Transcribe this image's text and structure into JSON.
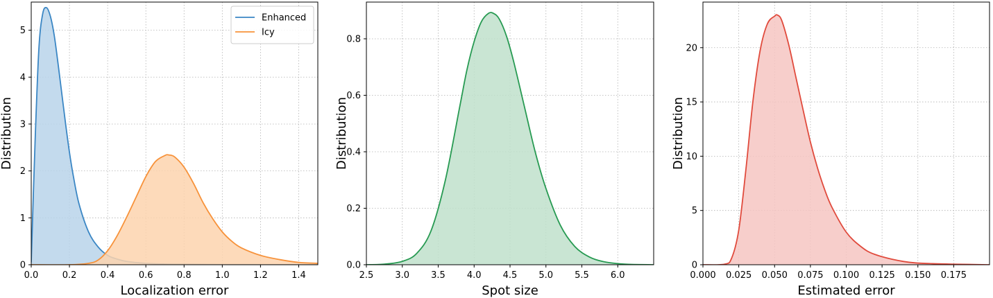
{
  "chart_data": [
    {
      "type": "area",
      "xlabel": "Localization error",
      "ylabel": "Distribution",
      "xlim": [
        0,
        1.5
      ],
      "ylim": [
        0,
        5.6
      ],
      "xticks": [
        "0.0",
        "0.2",
        "0.4",
        "0.6",
        "0.8",
        "1.0",
        "1.2",
        "1.4"
      ],
      "yticks": [
        "0",
        "1",
        "2",
        "3",
        "4",
        "5"
      ],
      "grid": true,
      "legend": "top-right",
      "series": [
        {
          "name": "Enhanced",
          "line_color": "#3a86c4",
          "fill_color": "#b9d4ea",
          "x": [
            0,
            0.02,
            0.04,
            0.06,
            0.08,
            0.1,
            0.12,
            0.14,
            0.16,
            0.18,
            0.2,
            0.22,
            0.25,
            0.3,
            0.35,
            0.4,
            0.45,
            0.5,
            0.6,
            0.7,
            0.8,
            1.0,
            1.2,
            1.5
          ],
          "y": [
            0.05,
            2.6,
            4.6,
            5.35,
            5.48,
            5.3,
            4.9,
            4.3,
            3.65,
            3.0,
            2.4,
            1.9,
            1.3,
            0.7,
            0.38,
            0.2,
            0.12,
            0.07,
            0.03,
            0.015,
            0.01,
            0.004,
            0.002,
            0.001
          ]
        },
        {
          "name": "Icy",
          "line_color": "#f7923a",
          "fill_color": "#fdd3ae",
          "x": [
            0,
            0.2,
            0.3,
            0.35,
            0.4,
            0.45,
            0.5,
            0.55,
            0.6,
            0.65,
            0.7,
            0.72,
            0.75,
            0.8,
            0.85,
            0.9,
            0.95,
            1.0,
            1.05,
            1.1,
            1.2,
            1.3,
            1.4,
            1.5
          ],
          "y": [
            0.0,
            0.0,
            0.03,
            0.1,
            0.3,
            0.62,
            1.02,
            1.45,
            1.88,
            2.2,
            2.33,
            2.34,
            2.3,
            2.08,
            1.73,
            1.32,
            0.98,
            0.7,
            0.5,
            0.36,
            0.2,
            0.11,
            0.05,
            0.03
          ]
        }
      ]
    },
    {
      "type": "area",
      "xlabel": "Spot size",
      "ylabel": "Distribution",
      "xlim": [
        2.5,
        6.5
      ],
      "ylim": [
        0,
        0.93
      ],
      "xticks": [
        "2.5",
        "3.0",
        "3.5",
        "4.0",
        "4.5",
        "5.0",
        "5.5",
        "6.0"
      ],
      "yticks": [
        "0.0",
        "0.2",
        "0.4",
        "0.6",
        "0.8"
      ],
      "grid": true,
      "series": [
        {
          "line_color": "#279a52",
          "fill_color": "#bfe1cb",
          "x": [
            2.5,
            2.75,
            3.0,
            3.2,
            3.4,
            3.6,
            3.8,
            3.9,
            4.0,
            4.1,
            4.2,
            4.27,
            4.35,
            4.45,
            4.55,
            4.7,
            4.85,
            5.0,
            5.2,
            5.4,
            5.6,
            5.8,
            6.1,
            6.5
          ],
          "y": [
            0.0,
            0.002,
            0.012,
            0.04,
            0.12,
            0.3,
            0.56,
            0.69,
            0.79,
            0.86,
            0.89,
            0.89,
            0.87,
            0.81,
            0.72,
            0.56,
            0.4,
            0.27,
            0.14,
            0.065,
            0.028,
            0.011,
            0.002,
            0.0
          ]
        }
      ]
    },
    {
      "type": "area",
      "xlabel": "Estimated error",
      "ylabel": "Distribution",
      "xlim": [
        0,
        0.2
      ],
      "ylim": [
        0,
        24.2
      ],
      "xticks": [
        "0.000",
        "0.025",
        "0.050",
        "0.075",
        "0.100",
        "0.125",
        "0.150",
        "0.175"
      ],
      "yticks": [
        "0",
        "5",
        "10",
        "15",
        "20"
      ],
      "grid": true,
      "series": [
        {
          "line_color": "#e04a3c",
          "fill_color": "#f6c6c2",
          "x": [
            0,
            0.015,
            0.02,
            0.025,
            0.03,
            0.035,
            0.04,
            0.045,
            0.05,
            0.052,
            0.055,
            0.06,
            0.065,
            0.07,
            0.075,
            0.08,
            0.085,
            0.09,
            0.1,
            0.11,
            0.12,
            0.14,
            0.16,
            0.2
          ],
          "y": [
            0.0,
            0.05,
            0.6,
            3.2,
            8.8,
            15.2,
            19.8,
            22.2,
            22.9,
            23.0,
            22.5,
            20.2,
            17.2,
            14.2,
            11.3,
            8.9,
            6.9,
            5.3,
            3.0,
            1.7,
            0.95,
            0.3,
            0.1,
            0.0
          ]
        }
      ]
    }
  ]
}
